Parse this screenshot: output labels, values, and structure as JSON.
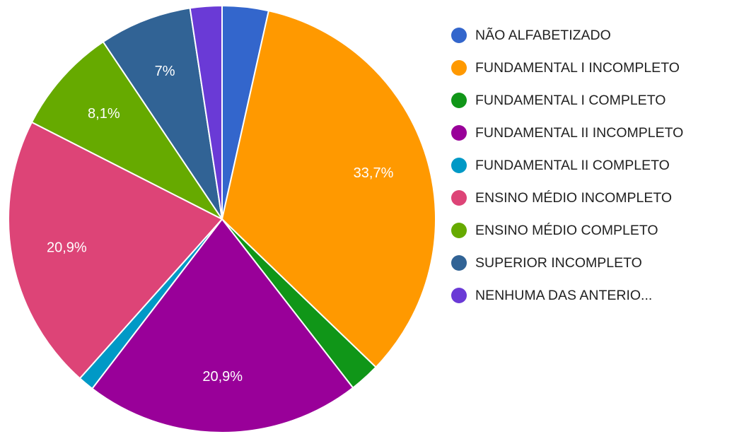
{
  "chart_data": {
    "type": "pie",
    "categories": [
      "NÃO ALFABETIZADO",
      "FUNDAMENTAL I INCOMPLETO",
      "FUNDAMENTAL I COMPLETO",
      "FUNDAMENTAL II INCOMPLETO",
      "FUNDAMENTAL II COMPLETO",
      "ENSINO MÉDIO INCOMPLETO",
      "ENSINO MÉDIO COMPLETO",
      "SUPERIOR INCOMPLETO",
      "NENHUMA DAS ANTERIO..."
    ],
    "values": [
      3.5,
      33.7,
      2.3,
      20.9,
      1.2,
      20.9,
      8.1,
      7,
      2.4
    ],
    "value_labels": [
      null,
      "33,7%",
      null,
      "20,9%",
      null,
      "20,9%",
      "8,1%",
      "7%",
      null
    ],
    "colors": [
      "#3366cc",
      "#ff9900",
      "#109618",
      "#990099",
      "#0099c6",
      "#dd4477",
      "#66aa00",
      "#316395",
      "#6a3ad6"
    ],
    "legend": "right"
  }
}
